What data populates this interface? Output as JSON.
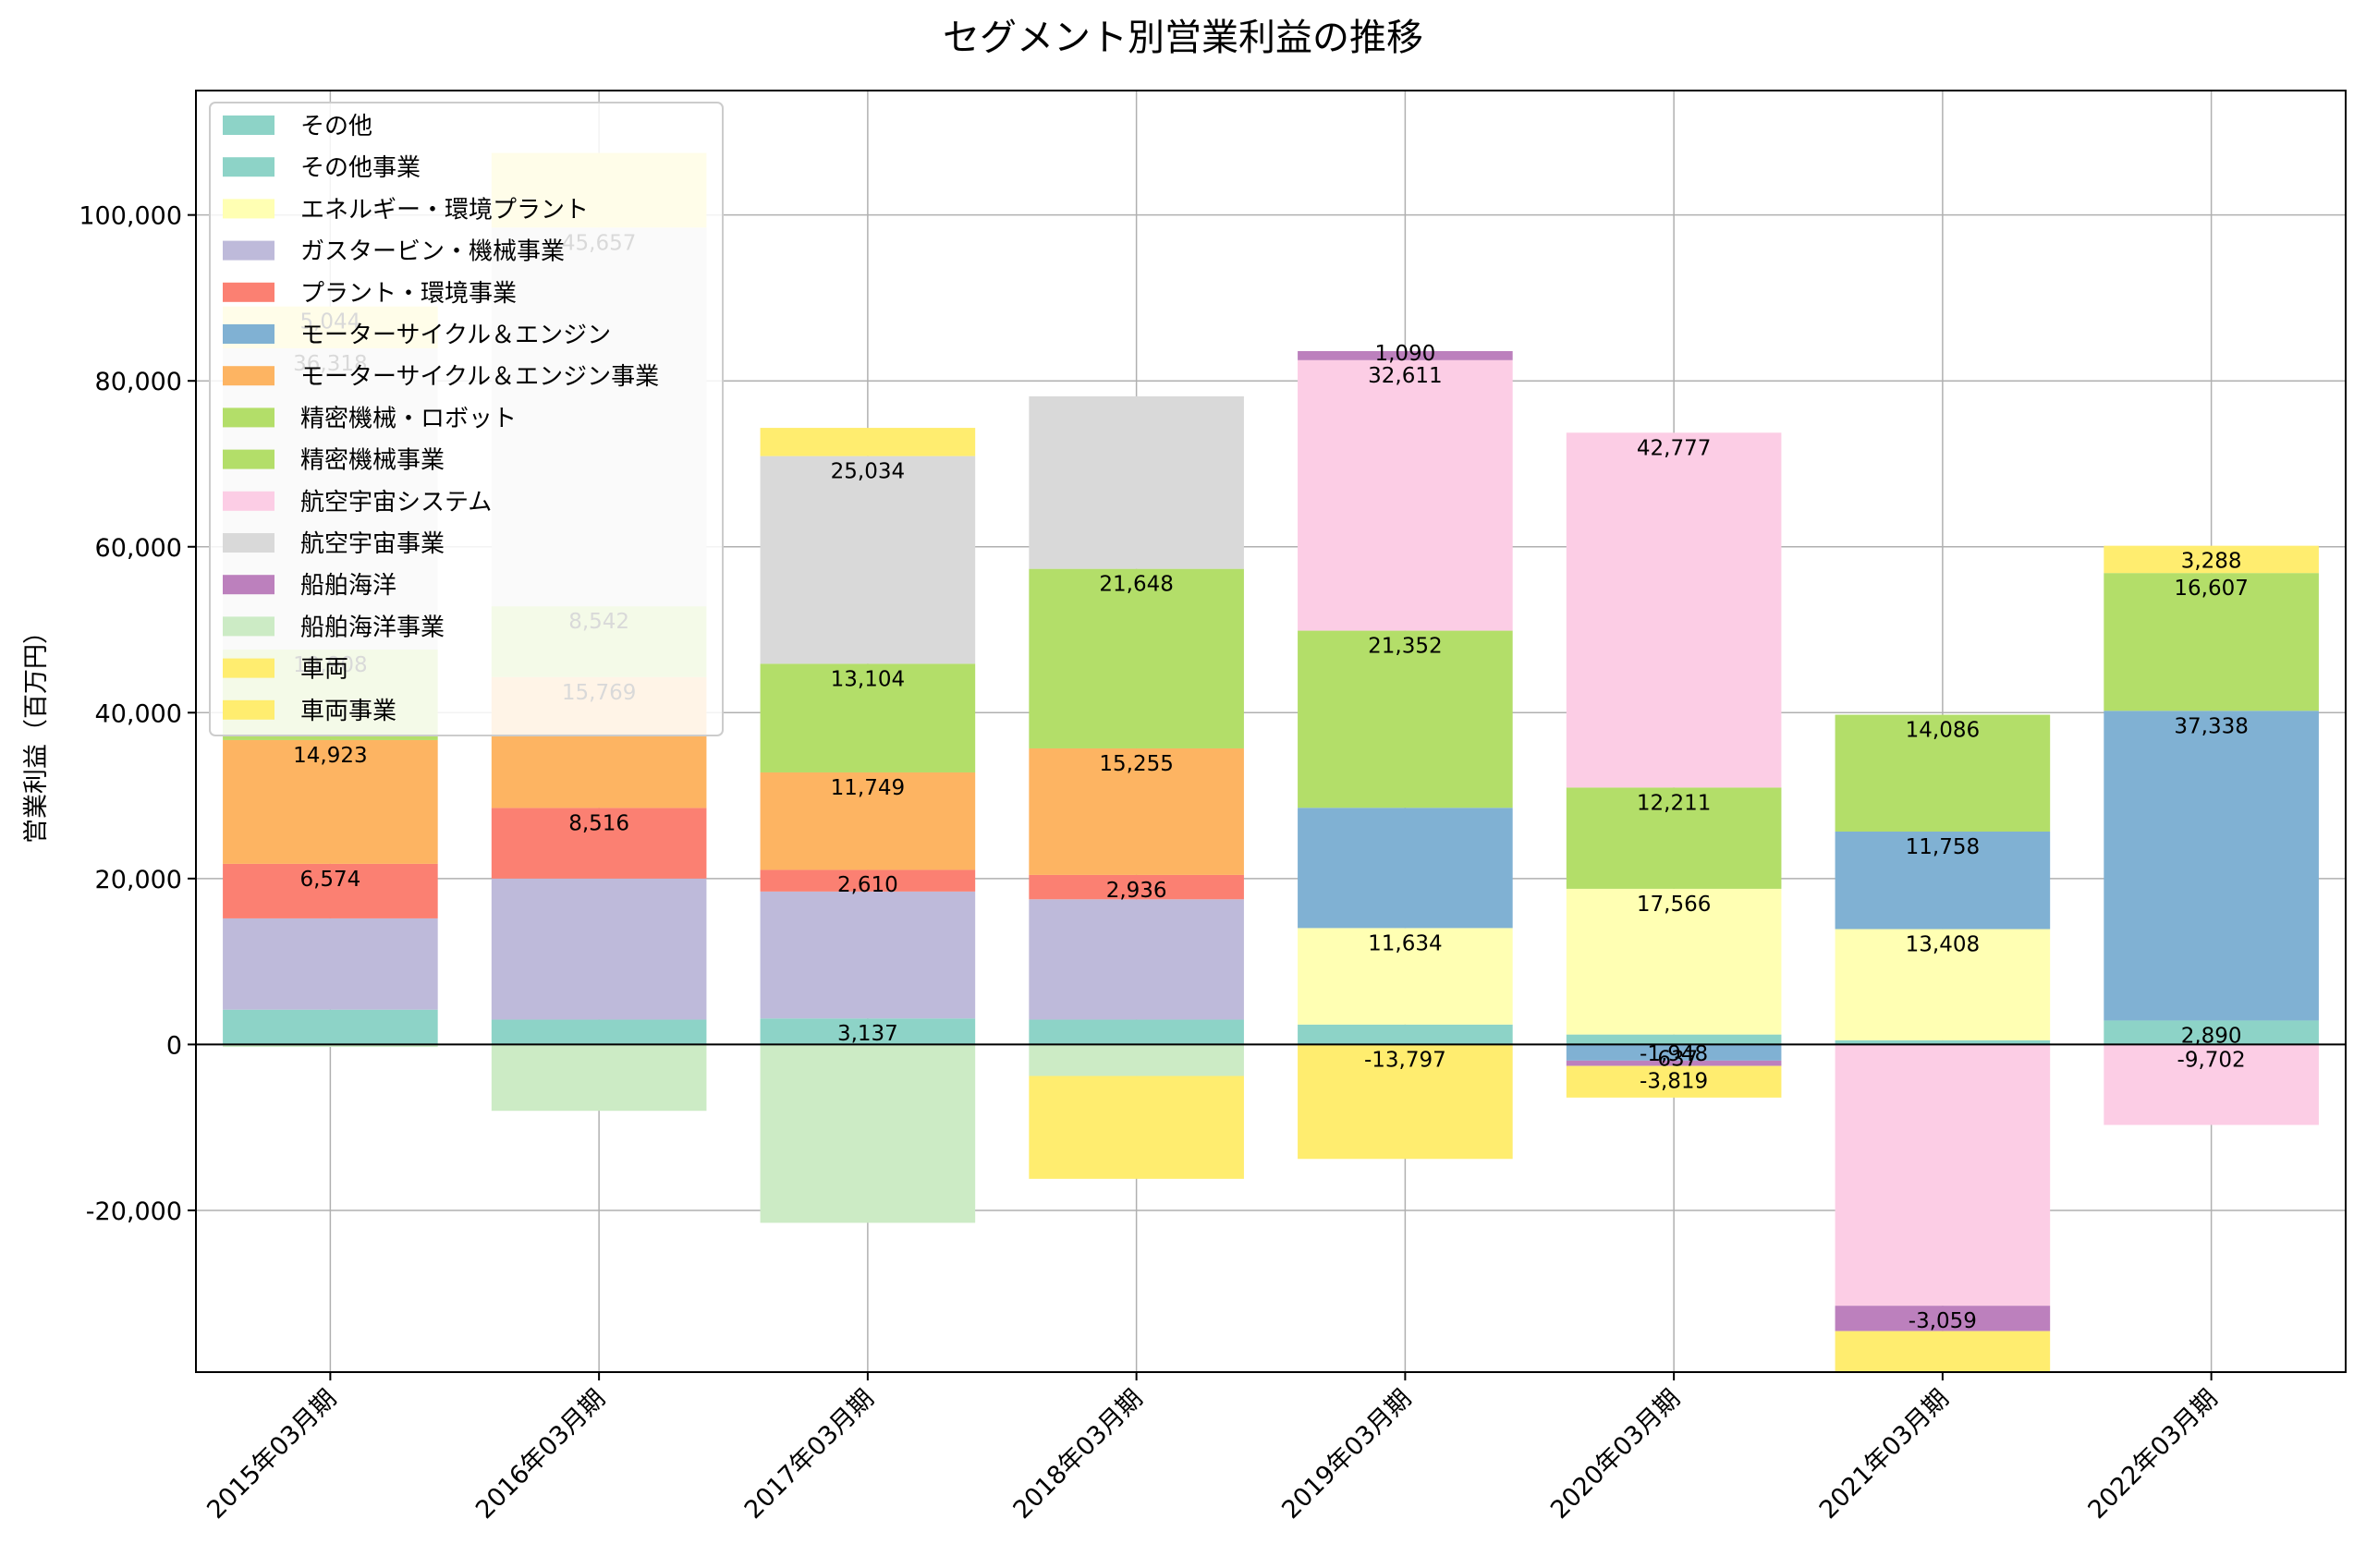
{
  "chart_data": {
    "type": "bar",
    "stacked": true,
    "title": "セグメント別営業利益の推移",
    "ylabel": "営業利益（百万円）",
    "xlabel": "",
    "ylim": [
      -39500,
      115000
    ],
    "yticks": [
      -20000,
      0,
      20000,
      40000,
      60000,
      80000,
      100000
    ],
    "ytick_labels": [
      "-20,000",
      "0",
      "20,000",
      "40,000",
      "60,000",
      "80,000",
      "100,000"
    ],
    "grid": true,
    "legend_position": "upper-left",
    "categories": [
      "2015年03月期",
      "2016年03月期",
      "2017年03月期",
      "2018年03月期",
      "2019年03月期",
      "2020年03月期",
      "2021年03月期",
      "2022年03月期"
    ],
    "series": [
      {
        "name": "その他",
        "color": "#8dd3c7",
        "values": [
          null,
          null,
          null,
          null,
          2400,
          1200,
          500,
          2890
        ]
      },
      {
        "name": "その他事業",
        "color": "#8dd3c7",
        "values": [
          4200,
          3000,
          3137,
          3000,
          null,
          null,
          null,
          null
        ]
      },
      {
        "name": "エネルギー・環境プラント",
        "color": "#ffffb3",
        "values": [
          null,
          null,
          null,
          null,
          11634,
          17566,
          13408,
          null
        ]
      },
      {
        "name": "ガスタービン・機械事業",
        "color": "#bebada",
        "values": [
          11000,
          17000,
          15300,
          14500,
          null,
          null,
          null,
          null
        ]
      },
      {
        "name": "プラント・環境事業",
        "color": "#fb8072",
        "values": [
          6574,
          8516,
          2610,
          2936,
          null,
          null,
          null,
          null
        ]
      },
      {
        "name": "モーターサイクル＆エンジン",
        "color": "#80b1d3",
        "values": [
          null,
          null,
          null,
          null,
          14500,
          -1948,
          11758,
          37338
        ]
      },
      {
        "name": "モーターサイクル＆エンジン事業",
        "color": "#fdb462",
        "values": [
          14923,
          15769,
          11749,
          15255,
          null,
          null,
          null,
          null
        ]
      },
      {
        "name": "精密機械・ロボット",
        "color": "#b3de69",
        "values": [
          null,
          null,
          null,
          null,
          21352,
          12211,
          14086,
          16607
        ]
      },
      {
        "name": "精密機械事業",
        "color": "#b3de69",
        "values": [
          10908,
          8542,
          13104,
          21648,
          null,
          null,
          null,
          null
        ]
      },
      {
        "name": "航空宇宙システム",
        "color": "#fccde5",
        "values": [
          null,
          null,
          null,
          null,
          32611,
          42777,
          -31500,
          -9702
        ]
      },
      {
        "name": "航空宇宙事業",
        "color": "#d9d9d9",
        "values": [
          36318,
          45657,
          25034,
          20800,
          null,
          null,
          null,
          null
        ]
      },
      {
        "name": "船舶海洋",
        "color": "#bc80bd",
        "values": [
          null,
          null,
          null,
          null,
          1090,
          -637,
          -3059,
          null
        ]
      },
      {
        "name": "船舶海洋事業",
        "color": "#ccebc5",
        "values": [
          -300,
          -8000,
          -21500,
          -3800,
          null,
          null,
          null,
          null
        ]
      },
      {
        "name": "車両",
        "color": "#ffed6f",
        "values": [
          null,
          null,
          null,
          null,
          -13797,
          -3819,
          -5000,
          3288
        ]
      },
      {
        "name": "車両事業",
        "color": "#ffed6f",
        "values": [
          5044,
          9000,
          3400,
          -12400,
          null,
          null,
          null,
          null
        ]
      }
    ],
    "data_labels": [
      {
        "cat": 0,
        "series": 4,
        "text": "6,574",
        "color": "#000000"
      },
      {
        "cat": 0,
        "series": 6,
        "text": "14,923",
        "color": "#000000"
      },
      {
        "cat": 0,
        "series": 8,
        "text": "10,908",
        "color": "#c8c8c8"
      },
      {
        "cat": 0,
        "series": 10,
        "text": "36,318",
        "color": "#c8c8c8"
      },
      {
        "cat": 0,
        "series": 14,
        "text": "5,044",
        "color": "#c8c8c8"
      },
      {
        "cat": 1,
        "series": 4,
        "text": "8,516",
        "color": "#000000"
      },
      {
        "cat": 1,
        "series": 6,
        "text": "15,769",
        "color": "#c8c8c8"
      },
      {
        "cat": 1,
        "series": 8,
        "text": "8,542",
        "color": "#c8c8c8"
      },
      {
        "cat": 1,
        "series": 10,
        "text": "45,657",
        "color": "#c8c8c8"
      },
      {
        "cat": 2,
        "series": 1,
        "text": "3,137",
        "color": "#000000"
      },
      {
        "cat": 2,
        "series": 4,
        "text": "2,610",
        "color": "#000000"
      },
      {
        "cat": 2,
        "series": 6,
        "text": "11,749",
        "color": "#000000"
      },
      {
        "cat": 2,
        "series": 8,
        "text": "13,104",
        "color": "#000000"
      },
      {
        "cat": 2,
        "series": 10,
        "text": "25,034",
        "color": "#000000"
      },
      {
        "cat": 3,
        "series": 4,
        "text": "2,936",
        "color": "#000000"
      },
      {
        "cat": 3,
        "series": 6,
        "text": "15,255",
        "color": "#000000"
      },
      {
        "cat": 3,
        "series": 8,
        "text": "21,648",
        "color": "#000000"
      },
      {
        "cat": 4,
        "series": 2,
        "text": "11,634",
        "color": "#000000"
      },
      {
        "cat": 4,
        "series": 7,
        "text": "21,352",
        "color": "#000000"
      },
      {
        "cat": 4,
        "series": 9,
        "text": "32,611",
        "color": "#000000"
      },
      {
        "cat": 4,
        "series": 11,
        "text": "1,090",
        "color": "#000000"
      },
      {
        "cat": 4,
        "series": 13,
        "text": "-13,797",
        "color": "#000000"
      },
      {
        "cat": 5,
        "series": 2,
        "text": "17,566",
        "color": "#000000"
      },
      {
        "cat": 5,
        "series": 5,
        "text": "-1,948",
        "color": "#000000"
      },
      {
        "cat": 5,
        "series": 7,
        "text": "12,211",
        "color": "#000000"
      },
      {
        "cat": 5,
        "series": 9,
        "text": "42,777",
        "color": "#000000"
      },
      {
        "cat": 5,
        "series": 11,
        "text": "-637",
        "color": "#000000"
      },
      {
        "cat": 5,
        "series": 13,
        "text": "-3,819",
        "color": "#000000"
      },
      {
        "cat": 6,
        "series": 2,
        "text": "13,408",
        "color": "#000000"
      },
      {
        "cat": 6,
        "series": 5,
        "text": "11,758",
        "color": "#000000"
      },
      {
        "cat": 6,
        "series": 7,
        "text": "14,086",
        "color": "#000000"
      },
      {
        "cat": 6,
        "series": 11,
        "text": "-3,059",
        "color": "#000000"
      },
      {
        "cat": 7,
        "series": 0,
        "text": "2,890",
        "color": "#000000"
      },
      {
        "cat": 7,
        "series": 5,
        "text": "37,338",
        "color": "#000000"
      },
      {
        "cat": 7,
        "series": 7,
        "text": "16,607",
        "color": "#000000"
      },
      {
        "cat": 7,
        "series": 9,
        "text": "-9,702",
        "color": "#000000"
      },
      {
        "cat": 7,
        "series": 13,
        "text": "3,288",
        "color": "#000000"
      }
    ]
  }
}
